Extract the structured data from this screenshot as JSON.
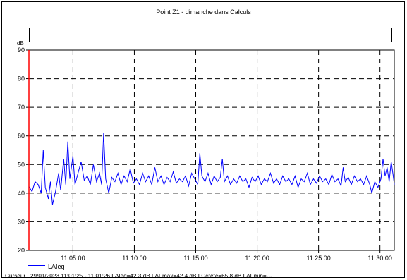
{
  "window": {
    "title": "Point Z1 - dimanche dans Calculs"
  },
  "chart_data": {
    "type": "line",
    "title": "Point Z1 - dimanche dans Calculs",
    "ylabel": "dB",
    "xlabel": "",
    "ylim": [
      20,
      90
    ],
    "yticks": [
      20,
      30,
      40,
      50,
      60,
      70,
      80,
      90
    ],
    "xlim": [
      "11:01:25",
      "11:31:10"
    ],
    "xticks": [
      "11:05:00",
      "11:10:00",
      "11:15:00",
      "11:20:00",
      "11:25:00",
      "11:30:00"
    ],
    "grid": true,
    "legend_position": "bottom-left",
    "cursor_time": "11:01:25",
    "colors": {
      "series": "#0000ff",
      "cursor": "#ff0000",
      "grid": "#000000"
    },
    "series": [
      {
        "name": "LAIeq",
        "points": [
          [
            "11:01:25",
            42.3
          ],
          [
            "11:01:40",
            40.5
          ],
          [
            "11:01:55",
            44.0
          ],
          [
            "11:02:10",
            43.0
          ],
          [
            "11:02:25",
            40.0
          ],
          [
            "11:02:35",
            55.0
          ],
          [
            "11:02:45",
            42.0
          ],
          [
            "11:03:00",
            38.0
          ],
          [
            "11:03:10",
            44.0
          ],
          [
            "11:03:20",
            36.0
          ],
          [
            "11:03:35",
            40.5
          ],
          [
            "11:03:50",
            47.0
          ],
          [
            "11:04:00",
            41.0
          ],
          [
            "11:04:15",
            52.0
          ],
          [
            "11:04:25",
            43.0
          ],
          [
            "11:04:35",
            58.0
          ],
          [
            "11:04:45",
            45.0
          ],
          [
            "11:05:00",
            53.0
          ],
          [
            "11:05:10",
            43.0
          ],
          [
            "11:05:25",
            47.0
          ],
          [
            "11:05:40",
            51.0
          ],
          [
            "11:05:55",
            44.5
          ],
          [
            "11:06:10",
            46.0
          ],
          [
            "11:06:25",
            43.0
          ],
          [
            "11:06:40",
            50.0
          ],
          [
            "11:06:55",
            44.0
          ],
          [
            "11:07:10",
            47.0
          ],
          [
            "11:07:20",
            43.0
          ],
          [
            "11:07:30",
            61.0
          ],
          [
            "11:07:40",
            45.0
          ],
          [
            "11:07:55",
            40.0
          ],
          [
            "11:08:10",
            45.5
          ],
          [
            "11:08:25",
            44.0
          ],
          [
            "11:08:40",
            47.0
          ],
          [
            "11:08:55",
            43.0
          ],
          [
            "11:09:10",
            46.0
          ],
          [
            "11:09:25",
            44.0
          ],
          [
            "11:09:40",
            48.5
          ],
          [
            "11:09:55",
            43.5
          ],
          [
            "11:10:10",
            45.0
          ],
          [
            "11:10:25",
            43.0
          ],
          [
            "11:10:40",
            47.0
          ],
          [
            "11:10:55",
            44.0
          ],
          [
            "11:11:10",
            46.0
          ],
          [
            "11:11:25",
            43.0
          ],
          [
            "11:11:40",
            49.0
          ],
          [
            "11:11:55",
            44.0
          ],
          [
            "11:12:10",
            46.0
          ],
          [
            "11:12:25",
            43.0
          ],
          [
            "11:12:40",
            45.5
          ],
          [
            "11:12:55",
            44.0
          ],
          [
            "11:13:10",
            47.5
          ],
          [
            "11:13:25",
            43.5
          ],
          [
            "11:13:40",
            45.0
          ],
          [
            "11:13:55",
            44.0
          ],
          [
            "11:14:10",
            46.0
          ],
          [
            "11:14:25",
            42.5
          ],
          [
            "11:14:40",
            47.0
          ],
          [
            "11:14:55",
            45.0
          ],
          [
            "11:15:10",
            43.0
          ],
          [
            "11:15:20",
            54.0
          ],
          [
            "11:15:30",
            46.0
          ],
          [
            "11:15:45",
            44.0
          ],
          [
            "11:16:00",
            47.0
          ],
          [
            "11:16:15",
            43.0
          ],
          [
            "11:16:30",
            46.0
          ],
          [
            "11:16:45",
            44.0
          ],
          [
            "11:17:00",
            45.5
          ],
          [
            "11:17:10",
            52.0
          ],
          [
            "11:17:20",
            44.0
          ],
          [
            "11:17:35",
            46.0
          ],
          [
            "11:17:50",
            43.0
          ],
          [
            "11:18:05",
            45.0
          ],
          [
            "11:18:20",
            43.5
          ],
          [
            "11:18:35",
            46.0
          ],
          [
            "11:18:50",
            44.0
          ],
          [
            "11:19:05",
            45.0
          ],
          [
            "11:19:20",
            42.0
          ],
          [
            "11:19:35",
            45.5
          ],
          [
            "11:19:50",
            44.0
          ],
          [
            "11:20:05",
            46.0
          ],
          [
            "11:20:20",
            43.0
          ],
          [
            "11:20:35",
            45.0
          ],
          [
            "11:20:50",
            44.0
          ],
          [
            "11:21:05",
            47.0
          ],
          [
            "11:21:20",
            43.5
          ],
          [
            "11:21:35",
            45.0
          ],
          [
            "11:21:50",
            43.0
          ],
          [
            "11:22:05",
            46.0
          ],
          [
            "11:22:20",
            44.0
          ],
          [
            "11:22:35",
            45.0
          ],
          [
            "11:22:50",
            43.0
          ],
          [
            "11:23:05",
            46.0
          ],
          [
            "11:23:20",
            42.0
          ],
          [
            "11:23:35",
            45.0
          ],
          [
            "11:23:50",
            44.0
          ],
          [
            "11:24:05",
            47.0
          ],
          [
            "11:24:20",
            43.0
          ],
          [
            "11:24:35",
            45.0
          ],
          [
            "11:24:50",
            43.5
          ],
          [
            "11:25:05",
            46.0
          ],
          [
            "11:25:20",
            44.0
          ],
          [
            "11:25:35",
            45.0
          ],
          [
            "11:25:50",
            43.0
          ],
          [
            "11:26:05",
            46.5
          ],
          [
            "11:26:20",
            44.0
          ],
          [
            "11:26:35",
            45.0
          ],
          [
            "11:26:50",
            42.5
          ],
          [
            "11:27:00",
            49.0
          ],
          [
            "11:27:10",
            44.0
          ],
          [
            "11:27:25",
            45.5
          ],
          [
            "11:27:40",
            43.0
          ],
          [
            "11:27:55",
            46.0
          ],
          [
            "11:28:10",
            44.0
          ],
          [
            "11:28:25",
            45.0
          ],
          [
            "11:28:40",
            43.0
          ],
          [
            "11:28:55",
            46.0
          ],
          [
            "11:29:10",
            43.0
          ],
          [
            "11:29:20",
            40.0
          ],
          [
            "11:29:35",
            44.0
          ],
          [
            "11:29:50",
            42.0
          ],
          [
            "11:30:05",
            45.0
          ],
          [
            "11:30:15",
            52.0
          ],
          [
            "11:30:25",
            46.0
          ],
          [
            "11:30:35",
            49.0
          ],
          [
            "11:30:45",
            44.0
          ],
          [
            "11:30:55",
            51.0
          ],
          [
            "11:31:05",
            46.0
          ],
          [
            "11:31:10",
            43.0
          ]
        ]
      }
    ]
  },
  "cursor_info": "Curseur : 29/01/2023 11:01:25 - 11:01:26  LAIeq=42.3 dB  LAFmax=42.4 dB  LCcrête=65.8 dB  LAFmin=---"
}
